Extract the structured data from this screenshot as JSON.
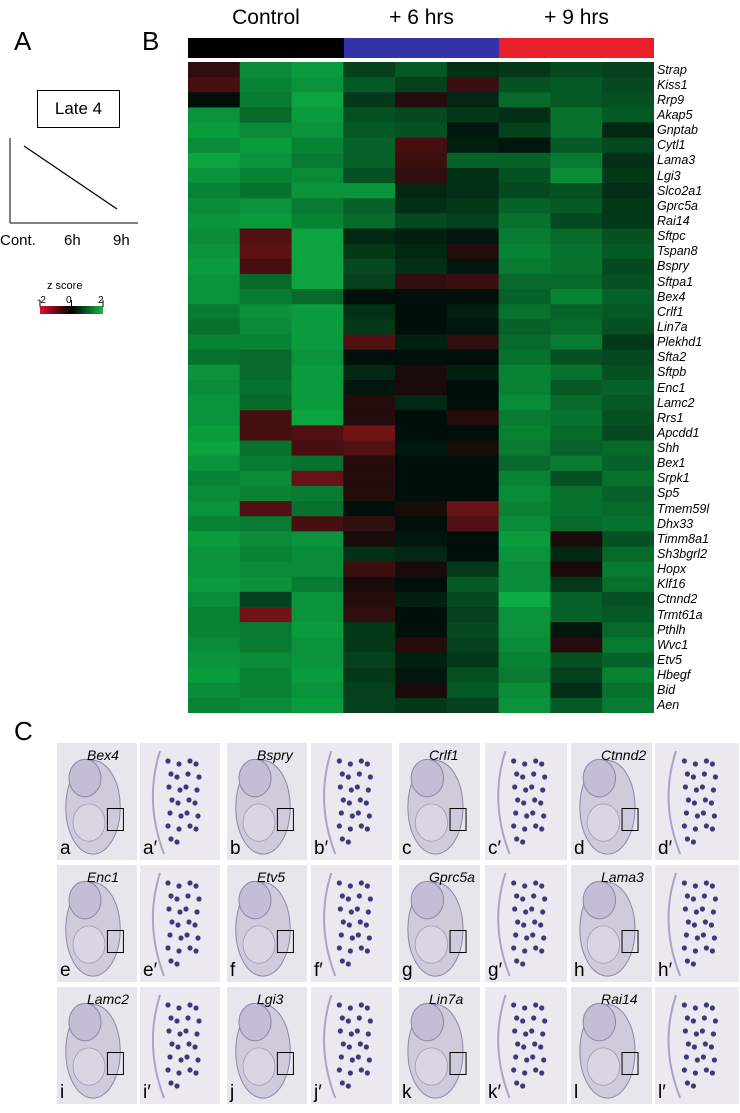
{
  "panels": {
    "a": "A",
    "b": "B",
    "c": "C"
  },
  "late_box": {
    "title": "Late 4",
    "x_labels": [
      "Cont.",
      "6h",
      "9h"
    ]
  },
  "zscore": {
    "title": "z score",
    "ticks": [
      "-2",
      "0",
      "2"
    ]
  },
  "conditions": [
    {
      "label": "Control",
      "color": "#000000"
    },
    {
      "label": "+ 6 hrs",
      "color": "#3333a8"
    },
    {
      "label": "+ 9 hrs",
      "color": "#e8202a"
    }
  ],
  "genes": [
    "Strap",
    "Kiss1",
    "Rrp9",
    "Akap5",
    "Gnptab",
    "Cytl1",
    "Lama3",
    "Lgi3",
    "Slco2a1",
    "Gprc5a",
    "Rai14",
    "Sftpc",
    "Tspan8",
    "Bspry",
    "Sftpa1",
    "Bex4",
    "Crlf1",
    "Lin7a",
    "Plekhd1",
    "Sfta2",
    "Sftpb",
    "Enc1",
    "Lamc2",
    "Rrs1",
    "Apcdd1",
    "Shh",
    "Bex1",
    "Srpk1",
    "Sp5",
    "Tmem59l",
    "Dhx33",
    "Timm8a1",
    "Sh3bgrl2",
    "Hopx",
    "Klf16",
    "Ctnnd2",
    "Trmt61a",
    "Pthlh",
    "Wvc1",
    "Etv5",
    "Hbegf",
    "Bid",
    "Aen"
  ],
  "chart_data": {
    "type": "heatmap",
    "columns": [
      "Control",
      "Control",
      "Control",
      "+ 6 hrs",
      "+ 6 hrs",
      "+ 6 hrs",
      "+ 9 hrs",
      "+ 9 hrs",
      "+ 9 hrs"
    ],
    "rows": [
      "Strap",
      "Kiss1",
      "Rrp9",
      "Akap5",
      "Gnptab",
      "Cytl1",
      "Lama3",
      "Lgi3",
      "Slco2a1",
      "Gprc5a",
      "Rai14",
      "Sftpc",
      "Tspan8",
      "Bspry",
      "Sftpa1",
      "Bex4",
      "Crlf1",
      "Lin7a",
      "Plekhd1",
      "Sfta2",
      "Sftpb",
      "Enc1",
      "Lamc2",
      "Rrs1",
      "Apcdd1",
      "Shh",
      "Bex1",
      "Srpk1",
      "Sp5",
      "Tmem59l",
      "Dhx33",
      "Timm8a1",
      "Sh3bgrl2",
      "Hopx",
      "Klf16",
      "Ctnnd2",
      "Trmt61a",
      "Pthlh",
      "Wvc1",
      "Etv5",
      "Hbegf",
      "Bid",
      "Aen"
    ],
    "zrange": [
      -2,
      2
    ],
    "values": [
      [
        -0.3,
        1.5,
        1.7,
        0.6,
        0.9,
        0.4,
        0.5,
        0.7,
        0.6
      ],
      [
        -0.5,
        1.4,
        1.6,
        0.9,
        0.6,
        -0.4,
        0.8,
        0.9,
        0.7
      ],
      [
        0.0,
        1.3,
        1.8,
        0.5,
        -0.2,
        0.3,
        1.1,
        0.9,
        0.8
      ],
      [
        1.6,
        1.1,
        1.7,
        0.8,
        0.7,
        0.5,
        0.4,
        1.2,
        0.9
      ],
      [
        1.7,
        1.5,
        1.6,
        0.9,
        0.8,
        0.1,
        0.6,
        1.2,
        0.3
      ],
      [
        1.5,
        1.7,
        1.4,
        1.0,
        -0.5,
        0.2,
        0.1,
        0.9,
        0.7
      ],
      [
        1.8,
        1.6,
        1.3,
        1.0,
        -0.4,
        1.0,
        1.0,
        1.3,
        0.4
      ],
      [
        1.6,
        1.4,
        1.5,
        0.8,
        -0.3,
        0.4,
        0.8,
        1.5,
        0.5
      ],
      [
        1.4,
        1.2,
        1.6,
        1.6,
        0.3,
        0.4,
        0.7,
        0.8,
        0.4
      ],
      [
        1.5,
        1.6,
        1.3,
        1.0,
        0.4,
        0.5,
        1.0,
        0.9,
        0.5
      ],
      [
        1.6,
        1.7,
        1.4,
        1.1,
        0.7,
        0.6,
        1.2,
        0.7,
        0.5
      ],
      [
        1.5,
        -0.6,
        1.8,
        0.3,
        0.2,
        0.1,
        1.3,
        1.1,
        0.8
      ],
      [
        1.6,
        -0.7,
        1.8,
        0.5,
        0.3,
        -0.2,
        1.4,
        1.2,
        0.9
      ],
      [
        1.7,
        -0.5,
        1.8,
        0.7,
        0.4,
        0.1,
        1.3,
        1.2,
        0.7
      ],
      [
        1.6,
        1.1,
        1.8,
        0.6,
        -0.3,
        -0.4,
        1.1,
        1.1,
        0.8
      ],
      [
        1.6,
        1.3,
        1.1,
        0.0,
        0.0,
        0.0,
        1.0,
        1.4,
        1.0
      ],
      [
        1.3,
        1.6,
        1.7,
        0.4,
        0.0,
        0.2,
        1.2,
        1.0,
        0.9
      ],
      [
        1.2,
        1.5,
        1.7,
        0.5,
        0.0,
        0.1,
        1.0,
        1.1,
        0.8
      ],
      [
        1.4,
        1.4,
        1.7,
        -0.6,
        0.2,
        -0.3,
        1.1,
        1.3,
        0.5
      ],
      [
        1.2,
        1.1,
        1.6,
        0.0,
        0.0,
        0.0,
        1.2,
        0.8,
        0.7
      ],
      [
        1.6,
        1.1,
        1.7,
        0.3,
        -0.1,
        0.2,
        1.4,
        1.2,
        0.8
      ],
      [
        1.5,
        1.2,
        1.7,
        0.1,
        -0.1,
        0.0,
        1.4,
        0.9,
        1.0
      ],
      [
        1.6,
        1.1,
        1.7,
        -0.2,
        0.3,
        0.0,
        1.5,
        1.1,
        0.9
      ],
      [
        1.6,
        -0.5,
        1.8,
        -0.2,
        0.0,
        -0.2,
        1.3,
        1.2,
        0.8
      ],
      [
        1.7,
        -0.5,
        -0.6,
        -0.9,
        0.0,
        0.0,
        1.4,
        1.1,
        0.7
      ],
      [
        1.8,
        1.2,
        -0.5,
        -0.6,
        0.1,
        -0.1,
        1.3,
        1.0,
        1.1
      ],
      [
        1.6,
        1.3,
        1.2,
        -0.2,
        0.0,
        0.0,
        1.1,
        1.3,
        1.0
      ],
      [
        1.4,
        1.5,
        -0.8,
        -0.2,
        0.0,
        0.0,
        1.4,
        0.8,
        1.2
      ],
      [
        1.5,
        1.4,
        1.3,
        -0.2,
        0.0,
        0.0,
        1.5,
        1.2,
        1.0
      ],
      [
        1.6,
        -0.6,
        1.2,
        0.0,
        -0.1,
        -0.8,
        1.4,
        1.2,
        1.1
      ],
      [
        1.4,
        1.3,
        -0.5,
        -0.3,
        0.0,
        -0.6,
        1.5,
        1.1,
        1.2
      ],
      [
        1.7,
        1.5,
        1.6,
        -0.1,
        0.1,
        0.0,
        1.7,
        -0.1,
        0.8
      ],
      [
        1.6,
        1.4,
        1.5,
        0.4,
        0.3,
        0.0,
        1.6,
        0.3,
        1.1
      ],
      [
        1.6,
        1.5,
        1.5,
        -0.4,
        -0.1,
        0.5,
        1.5,
        -0.1,
        1.3
      ],
      [
        1.7,
        1.6,
        1.3,
        -0.1,
        0.0,
        0.9,
        1.5,
        0.5,
        1.2
      ],
      [
        1.5,
        0.6,
        1.6,
        -0.2,
        0.2,
        0.7,
        1.9,
        1.0,
        0.8
      ],
      [
        1.4,
        -0.9,
        1.6,
        -0.3,
        0.0,
        0.6,
        1.6,
        1.0,
        0.9
      ],
      [
        1.4,
        1.3,
        1.7,
        0.5,
        0.0,
        0.7,
        1.6,
        0.1,
        1.1
      ],
      [
        1.5,
        1.3,
        1.6,
        0.5,
        -0.2,
        0.6,
        1.5,
        -0.2,
        1.3
      ],
      [
        1.6,
        1.5,
        1.6,
        0.6,
        0.2,
        0.5,
        1.4,
        0.8,
        1.0
      ],
      [
        1.7,
        1.4,
        1.7,
        0.5,
        0.1,
        0.8,
        1.3,
        0.6,
        1.4
      ],
      [
        1.5,
        1.4,
        1.6,
        0.6,
        -0.1,
        0.9,
        1.5,
        0.4,
        1.2
      ],
      [
        1.4,
        1.5,
        1.7,
        0.6,
        0.5,
        0.6,
        1.6,
        0.9,
        1.3
      ]
    ]
  },
  "ish": {
    "row1": [
      {
        "gene": "Bex4",
        "label": "a",
        "zoom": "a′"
      },
      {
        "gene": "Bspry",
        "label": "b",
        "zoom": "b′"
      },
      {
        "gene": "Crlf1",
        "label": "c",
        "zoom": "c′"
      },
      {
        "gene": "Ctnnd2",
        "label": "d",
        "zoom": "d′"
      }
    ],
    "row2": [
      {
        "gene": "Enc1",
        "label": "e",
        "zoom": "e′"
      },
      {
        "gene": "Etv5",
        "label": "f",
        "zoom": "f′"
      },
      {
        "gene": "Gprc5a",
        "label": "g",
        "zoom": "g′"
      },
      {
        "gene": "Lama3",
        "label": "h",
        "zoom": "h′"
      }
    ],
    "row3": [
      {
        "gene": "Lamc2",
        "label": "i",
        "zoom": "i′"
      },
      {
        "gene": "Lgi3",
        "label": "j",
        "zoom": "j′"
      },
      {
        "gene": "Lin7a",
        "label": "k",
        "zoom": "k′"
      },
      {
        "gene": "Rai14",
        "label": "l",
        "zoom": "l′"
      }
    ]
  }
}
